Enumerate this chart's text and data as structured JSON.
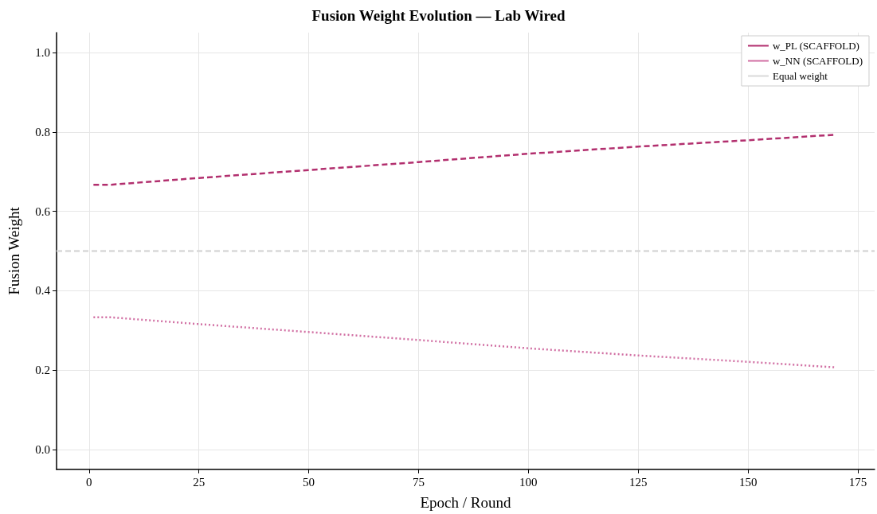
{
  "chart_data": {
    "type": "line",
    "title": "Fusion Weight Evolution — Lab Wired",
    "xlabel": "Epoch / Round",
    "ylabel": "Fusion Weight",
    "x": [
      1,
      5,
      25,
      50,
      75,
      100,
      125,
      150,
      170
    ],
    "series": [
      {
        "name": "w_PL (SCAFFOLD)",
        "color": "#b22f6e",
        "line_style": "dashed",
        "values": [
          0.667,
          0.667,
          0.684,
          0.704,
          0.724,
          0.745,
          0.763,
          0.779,
          0.793
        ]
      },
      {
        "name": "w_NN (SCAFFOLD)",
        "color": "#d16fa3",
        "line_style": "dotted",
        "values": [
          0.333,
          0.333,
          0.316,
          0.296,
          0.276,
          0.255,
          0.237,
          0.221,
          0.207
        ]
      }
    ],
    "ref_lines": [
      {
        "axis": "y",
        "value": 0.5,
        "label": "Equal weight",
        "color": "#d9d9d9",
        "line_style": "dashed"
      }
    ],
    "xlim": [
      -7.4,
      178.8
    ],
    "xticks": [
      0,
      25,
      50,
      75,
      100,
      125,
      150,
      175
    ],
    "ylim": [
      -0.05,
      1.05
    ],
    "yticks": [
      {
        "value": 0,
        "label": "0.0"
      },
      {
        "value": 0.2,
        "label": "0.2"
      },
      {
        "value": 0.4,
        "label": "0.4"
      },
      {
        "value": 0.6,
        "label": "0.6"
      },
      {
        "value": 0.8,
        "label": "0.8"
      },
      {
        "value": 1,
        "label": "1.0"
      }
    ],
    "grid": true,
    "legend": "top right",
    "marker": "none"
  }
}
